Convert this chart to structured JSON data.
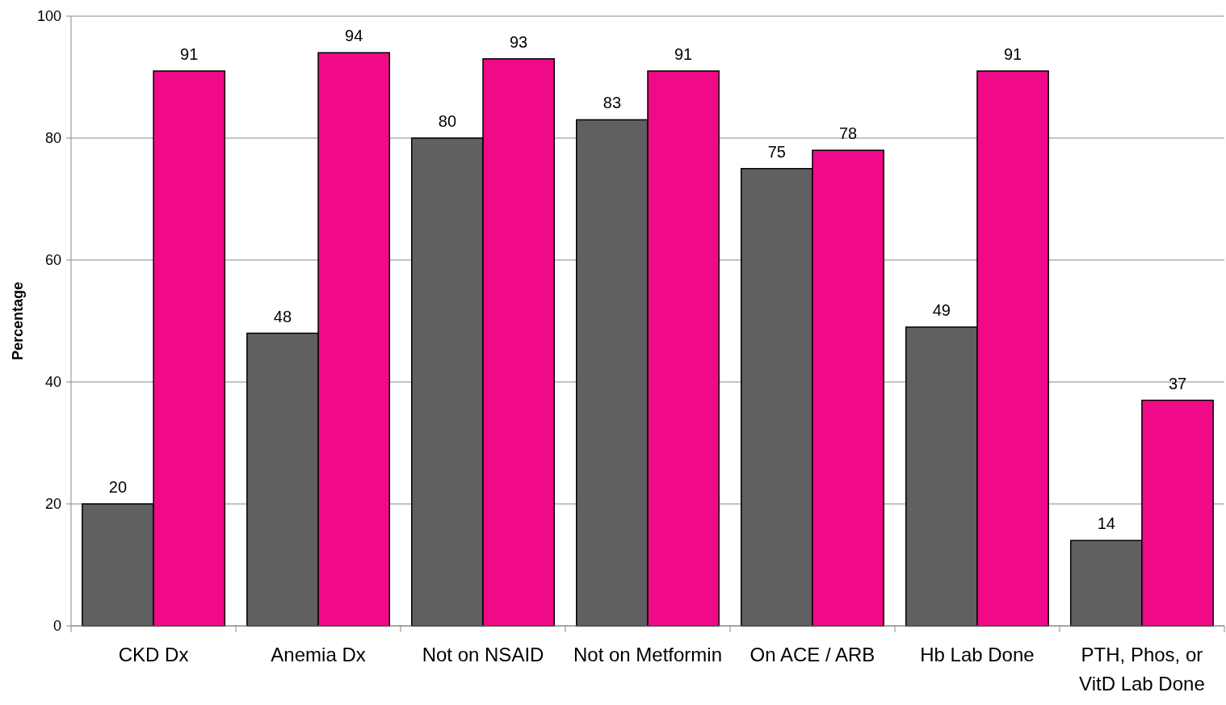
{
  "chart_data": {
    "type": "bar",
    "ylabel": "Percentage",
    "categories": [
      "CKD Dx",
      "Anemia Dx",
      "Not on NSAID",
      "Not on Metformin",
      "On ACE / ARB",
      "Hb Lab Done",
      "PTH, Phos, or VitD Lab Done"
    ],
    "series": [
      {
        "color": "#606060",
        "values": [
          20,
          48,
          80,
          83,
          75,
          49,
          14
        ]
      },
      {
        "color": "#f00a87",
        "values": [
          91,
          94,
          93,
          91,
          78,
          91,
          37
        ]
      }
    ],
    "ylim": [
      0,
      100
    ],
    "yticks": [
      0,
      20,
      40,
      60,
      80,
      100
    ],
    "grid": "y",
    "data_labels": true
  }
}
